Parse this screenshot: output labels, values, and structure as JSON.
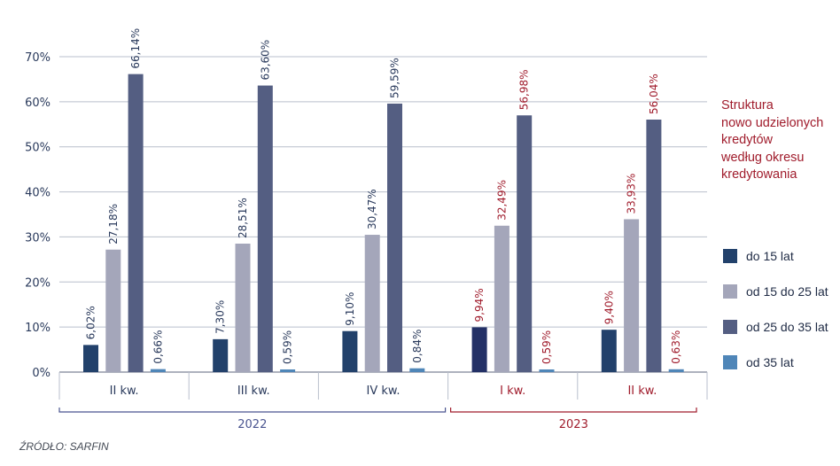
{
  "chart_data": {
    "type": "bar",
    "title": "Struktura nowo udzielonych kredytów według okresu kredytowania",
    "title_lines": [
      "Struktura",
      "nowo udzielonych",
      "kredytów",
      "według okresu",
      "kredytowania"
    ],
    "categories": [
      "II kw.",
      "III kw.",
      "IV kw.",
      "I kw.",
      "II kw."
    ],
    "years": [
      {
        "label": "2022",
        "categories": [
          0,
          1,
          2
        ],
        "color": "#4a5590"
      },
      {
        "label": "2023",
        "categories": [
          3,
          4
        ],
        "color": "#a01c2c"
      }
    ],
    "yticks": [
      "0%",
      "10%",
      "20%",
      "30%",
      "40%",
      "50%",
      "60%",
      "70%"
    ],
    "ylim": [
      0,
      70
    ],
    "grid": true,
    "legend_position": "right",
    "series": [
      {
        "name": "do 15 lat",
        "color": "#22416b",
        "values": [
          6.02,
          7.3,
          9.1,
          9.94,
          9.4
        ],
        "labels": [
          "6,02%",
          "7,30%",
          "9,10%",
          "9,94%",
          "9,40%"
        ]
      },
      {
        "name": "od 15 do 25 lat",
        "color": "#a4a6ba",
        "values": [
          27.18,
          28.51,
          30.47,
          32.49,
          33.93
        ],
        "labels": [
          "27,18%",
          "28,51%",
          "30,47%",
          "32,49%",
          "33,93%"
        ]
      },
      {
        "name": "od 25 do 35 lat",
        "color": "#545e82",
        "values": [
          66.14,
          63.6,
          59.59,
          56.98,
          56.04
        ],
        "labels": [
          "66,14%",
          "63,60%",
          "59,59%",
          "56,98%",
          "56,04%"
        ]
      },
      {
        "name": "od 35 lat",
        "color": "#4f86b8",
        "values": [
          0.66,
          0.59,
          0.84,
          0.59,
          0.63
        ],
        "labels": [
          "0,66%",
          "0,59%",
          "0,84%",
          "0,59%",
          "0,63%"
        ]
      }
    ],
    "highlight_color": "#a01c2c",
    "label_color": "#2a3a5c",
    "source": "ŹRÓDŁO: SARFIN"
  }
}
